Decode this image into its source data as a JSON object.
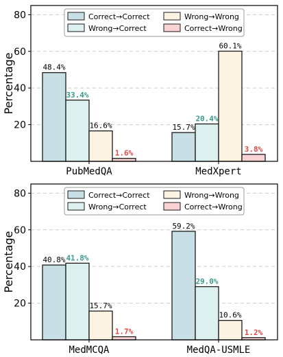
{
  "chart_data": [
    {
      "type": "bar",
      "ylabel": "Percentage",
      "ylim": [
        0,
        85
      ],
      "yticks": [
        20,
        40,
        60,
        80
      ],
      "grid": true,
      "legend_position": "top",
      "categories": [
        "PubMedQA",
        "MedXpert"
      ],
      "series": [
        {
          "name": "Correct→Correct",
          "color": "#c8dfe5",
          "label_color": "#000000",
          "values": [
            48.4,
            15.7
          ],
          "labels": [
            "48.4%",
            "15.7%"
          ]
        },
        {
          "name": "Wrong→Correct",
          "color": "#dcf1ef",
          "label_color": "#3a9a8c",
          "values": [
            33.4,
            20.4
          ],
          "labels": [
            "33.4%",
            "20.4%"
          ]
        },
        {
          "name": "Wrong→Wrong",
          "color": "#fdf3e3",
          "label_color": "#000000",
          "values": [
            16.6,
            60.1
          ],
          "labels": [
            "16.6%",
            "60.1%"
          ]
        },
        {
          "name": "Correct→Wrong",
          "color": "#f9d3d3",
          "label_color": "#e24a4a",
          "values": [
            1.6,
            3.8
          ],
          "labels": [
            "1.6%",
            "3.8%"
          ]
        }
      ]
    },
    {
      "type": "bar",
      "ylabel": "Percentage",
      "ylim": [
        0,
        85
      ],
      "yticks": [
        20,
        40,
        60,
        80
      ],
      "grid": true,
      "legend_position": "top",
      "categories": [
        "MedMCQA",
        "MedQA-USMLE"
      ],
      "series": [
        {
          "name": "Correct→Correct",
          "color": "#c8dfe5",
          "label_color": "#000000",
          "values": [
            40.8,
            59.2
          ],
          "labels": [
            "40.8%",
            "59.2%"
          ]
        },
        {
          "name": "Wrong→Correct",
          "color": "#dcf1ef",
          "label_color": "#3a9a8c",
          "values": [
            41.8,
            29.0
          ],
          "labels": [
            "41.8%",
            "29.0%"
          ]
        },
        {
          "name": "Wrong→Wrong",
          "color": "#fdf3e3",
          "label_color": "#000000",
          "values": [
            15.7,
            10.6
          ],
          "labels": [
            "15.7%",
            "10.6%"
          ]
        },
        {
          "name": "Correct→Wrong",
          "color": "#f9d3d3",
          "label_color": "#e24a4a",
          "values": [
            1.7,
            1.2
          ],
          "labels": [
            "1.7%",
            "1.2%"
          ]
        }
      ]
    }
  ]
}
